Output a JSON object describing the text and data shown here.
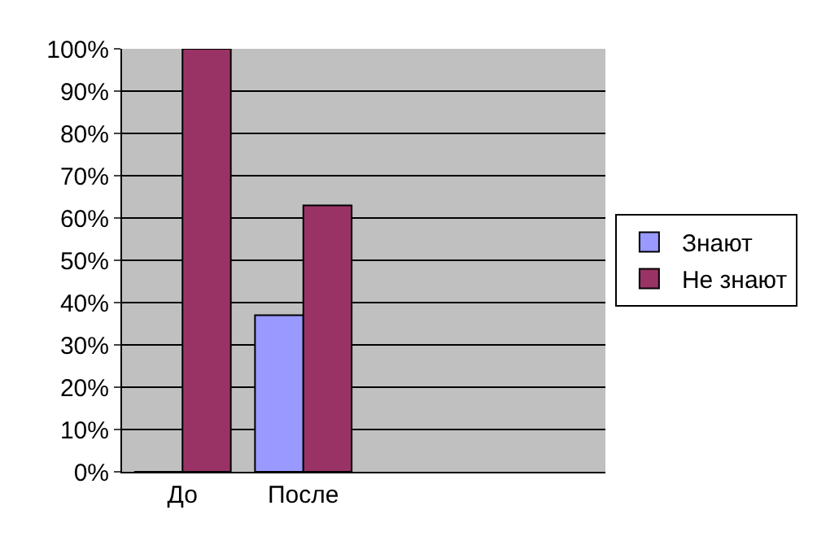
{
  "chart_data": {
    "type": "bar",
    "categories": [
      "До",
      "После",
      null,
      null
    ],
    "series": [
      {
        "name": "Знают",
        "color": "#9999ff",
        "values": [
          0,
          37,
          null,
          null
        ]
      },
      {
        "name": "Не знают",
        "color": "#993366",
        "values": [
          100,
          63,
          null,
          null
        ]
      }
    ],
    "ylim": [
      0,
      100
    ],
    "yticks": [
      {
        "value": 0,
        "label": "0%"
      },
      {
        "value": 10,
        "label": "10%"
      },
      {
        "value": 20,
        "label": "20%"
      },
      {
        "value": 30,
        "label": "30%"
      },
      {
        "value": 40,
        "label": "40%"
      },
      {
        "value": 50,
        "label": "50%"
      },
      {
        "value": 60,
        "label": "60%"
      },
      {
        "value": 70,
        "label": "70%"
      },
      {
        "value": 80,
        "label": "80%"
      },
      {
        "value": 90,
        "label": "90%"
      },
      {
        "value": 100,
        "label": "100%"
      }
    ],
    "grid": "y",
    "legend": "right"
  }
}
